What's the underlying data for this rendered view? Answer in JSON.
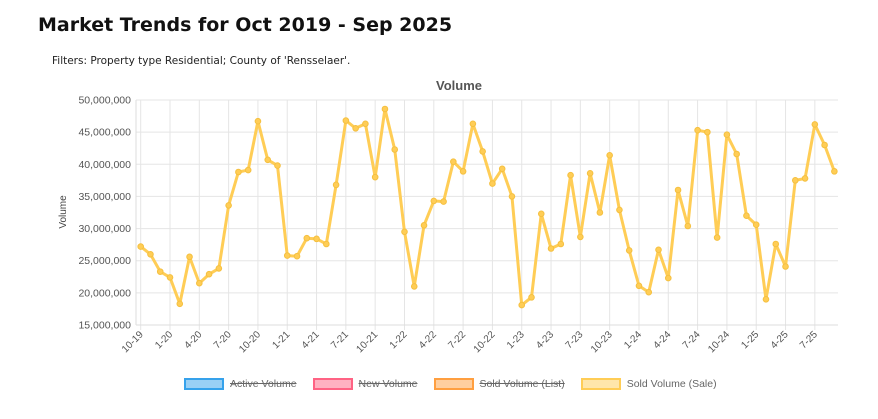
{
  "header": {
    "title": "Market Trends for Oct 2019 - Sep 2025",
    "filters": "Filters: Property type Residential; County of 'Rensselaer'."
  },
  "chart_data": {
    "type": "line",
    "title": "Volume",
    "xlabel": "",
    "ylabel": "Volume",
    "ylim": [
      15000000,
      50000000
    ],
    "y_ticks": [
      "50,000,000",
      "45,000,000",
      "40,000,000",
      "35,000,000",
      "30,000,000",
      "25,000,000",
      "20,000,000",
      "15,000,000"
    ],
    "y_tick_values": [
      50000000,
      45000000,
      40000000,
      35000000,
      30000000,
      25000000,
      20000000,
      15000000
    ],
    "x_tick_labels": [
      "10-19",
      "1-20",
      "4-20",
      "7-20",
      "10-20",
      "1-21",
      "4-21",
      "7-21",
      "10-21",
      "1-22",
      "4-22",
      "7-22",
      "10-22",
      "1-23",
      "4-23",
      "7-23",
      "10-23",
      "1-24",
      "4-24",
      "7-24",
      "10-24",
      "1-25",
      "4-25",
      "7-25"
    ],
    "x_start": "2019-10",
    "x_end": "2025-09",
    "grid": true,
    "legend_placement": "bottom",
    "series": [
      {
        "name": "Active Volume",
        "color": "#36a2eb",
        "hidden": true,
        "values": []
      },
      {
        "name": "New Volume",
        "color": "#ff6384",
        "hidden": true,
        "values": []
      },
      {
        "name": "Sold Volume (List)",
        "color": "#ff9f40",
        "hidden": true,
        "values": []
      },
      {
        "name": "Sold Volume (Sale)",
        "color": "#ffcd56",
        "hidden": false,
        "values": [
          27200000,
          26000000,
          23300000,
          22400000,
          18300000,
          25600000,
          21500000,
          22900000,
          23800000,
          33600000,
          38800000,
          39100000,
          46700000,
          40700000,
          39800000,
          25800000,
          25700000,
          28500000,
          28400000,
          27600000,
          36800000,
          46800000,
          45600000,
          46300000,
          38000000,
          48600000,
          42300000,
          29500000,
          21000000,
          30500000,
          34300000,
          34200000,
          40400000,
          38900000,
          46300000,
          42000000,
          37000000,
          39300000,
          35000000,
          18100000,
          19300000,
          32300000,
          26900000,
          27600000,
          38300000,
          28700000,
          38600000,
          32500000,
          41400000,
          32900000,
          26600000,
          21100000,
          20100000,
          26700000,
          22300000,
          36000000,
          30400000,
          45300000,
          45000000,
          28600000,
          44600000,
          41600000,
          32000000,
          30600000,
          19000000,
          27600000,
          24100000,
          37500000,
          37800000,
          46200000,
          43000000,
          38900000
        ]
      }
    ]
  }
}
